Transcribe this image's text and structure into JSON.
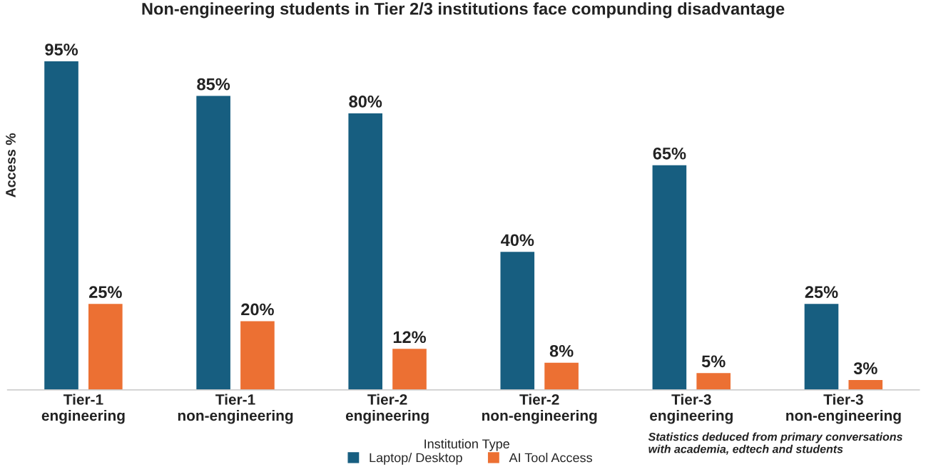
{
  "chart_data": {
    "type": "bar",
    "title": "Non-engineering students in Tier 2/3 institutions face compunding disadvantage",
    "xlabel": "Institution Type",
    "ylabel": "Access %",
    "categories": [
      "Tier-1\nengineering",
      "Tier-1\nnon-engineering",
      "Tier-2\nengineering",
      "Tier-2\nnon-engineering",
      "Tier-3\nengineering",
      "Tier-3\nnon-engineering"
    ],
    "series": [
      {
        "name": "Laptop/ Desktop",
        "color": "#175e80",
        "values": [
          95,
          85,
          80,
          40,
          65,
          25
        ],
        "value_labels": [
          "95%",
          "85%",
          "80%",
          "40%",
          "65%",
          "25%"
        ]
      },
      {
        "name": "AI Tool Access",
        "color": "#ec7033",
        "values": [
          25,
          20,
          12,
          8,
          5,
          3
        ],
        "value_labels": [
          "25%",
          "20%",
          "12%",
          "8%",
          "5%",
          "3%"
        ]
      }
    ],
    "tick_labels": "x",
    "grid": false,
    "legend": "bottom",
    "annotations": [
      "Statistics deduced from primary conversations\nwith academia, edtech and students"
    ]
  }
}
